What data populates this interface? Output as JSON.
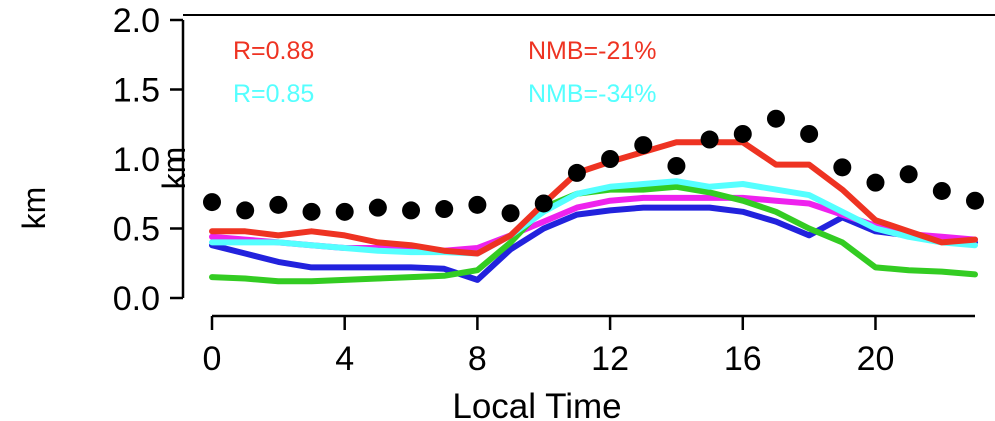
{
  "chart_data": {
    "type": "line",
    "xlabel": "Local Time",
    "ylabel": "km",
    "ylabel_overlay": "km",
    "xlim": [
      0,
      23
    ],
    "ylim": [
      0.0,
      2.0
    ],
    "xticks": [
      0,
      4,
      8,
      12,
      16,
      20
    ],
    "yticks": [
      "0.0",
      "0.5",
      "1.0",
      "1.5",
      "2.0"
    ],
    "grid": false,
    "stats": [
      {
        "r": "R=0.88",
        "nmb": "NMB=-21%",
        "color": "#ee3322"
      },
      {
        "r": "R=0.85",
        "nmb": "NMB=-34%",
        "color": "#55ffff"
      }
    ],
    "observations": {
      "marker": "dot",
      "color": "#000000",
      "x": [
        0,
        1,
        2,
        3,
        4,
        5,
        6,
        7,
        8,
        9,
        10,
        11,
        12,
        13,
        14,
        15,
        16,
        17,
        18,
        19,
        20,
        21,
        22,
        23
      ],
      "y": [
        0.69,
        0.63,
        0.67,
        0.62,
        0.62,
        0.65,
        0.63,
        0.64,
        0.67,
        0.61,
        0.68,
        0.9,
        1.0,
        1.1,
        0.95,
        1.14,
        1.18,
        1.29,
        1.18,
        0.94,
        0.83,
        0.89,
        0.77,
        0.7
      ]
    },
    "series": [
      {
        "color": "#2222dd",
        "y": [
          0.38,
          0.32,
          0.26,
          0.22,
          0.22,
          0.22,
          0.22,
          0.21,
          0.13,
          0.35,
          0.5,
          0.6,
          0.63,
          0.65,
          0.65,
          0.65,
          0.62,
          0.55,
          0.45,
          0.58,
          0.48,
          0.45,
          0.42,
          0.4
        ]
      },
      {
        "color": "#ee22ee",
        "y": [
          0.44,
          0.42,
          0.4,
          0.38,
          0.36,
          0.36,
          0.36,
          0.34,
          0.36,
          0.45,
          0.55,
          0.65,
          0.7,
          0.72,
          0.72,
          0.72,
          0.72,
          0.7,
          0.68,
          0.6,
          0.52,
          0.46,
          0.44,
          0.42
        ]
      },
      {
        "color": "#33cc22",
        "y": [
          0.15,
          0.14,
          0.12,
          0.12,
          0.13,
          0.14,
          0.15,
          0.16,
          0.2,
          0.4,
          0.65,
          0.75,
          0.78,
          0.78,
          0.8,
          0.76,
          0.7,
          0.62,
          0.5,
          0.4,
          0.22,
          0.2,
          0.19,
          0.17
        ]
      },
      {
        "color": "#55ffff",
        "y": [
          0.4,
          0.4,
          0.4,
          0.38,
          0.36,
          0.34,
          0.33,
          0.33,
          0.32,
          0.45,
          0.62,
          0.75,
          0.8,
          0.82,
          0.84,
          0.8,
          0.82,
          0.78,
          0.74,
          0.62,
          0.5,
          0.44,
          0.4,
          0.38
        ]
      },
      {
        "color": "#ee3322",
        "y": [
          0.48,
          0.48,
          0.45,
          0.48,
          0.45,
          0.4,
          0.38,
          0.34,
          0.32,
          0.45,
          0.68,
          0.9,
          0.98,
          1.05,
          1.12,
          1.12,
          1.12,
          0.96,
          0.96,
          0.78,
          0.56,
          0.48,
          0.4,
          0.42
        ]
      }
    ]
  }
}
